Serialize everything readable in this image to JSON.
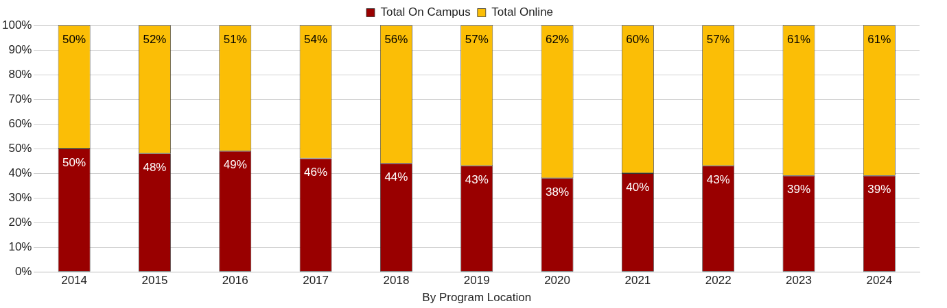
{
  "chart_data": {
    "type": "bar",
    "stacked": true,
    "xlabel": "By Program Location",
    "categories": [
      "2014",
      "2015",
      "2016",
      "2017",
      "2018",
      "2019",
      "2020",
      "2021",
      "2022",
      "2023",
      "2024"
    ],
    "series": [
      {
        "name": "Total On Campus",
        "color": "#990000",
        "values": [
          50,
          48,
          49,
          46,
          44,
          43,
          38,
          40,
          43,
          39,
          39
        ],
        "value_labels": [
          "50%",
          "48%",
          "49%",
          "46%",
          "44%",
          "43%",
          "38%",
          "40%",
          "43%",
          "39%",
          "39%"
        ]
      },
      {
        "name": "Total Online",
        "color": "#fbbe06",
        "values": [
          50,
          52,
          51,
          54,
          56,
          57,
          62,
          60,
          57,
          61,
          61
        ],
        "value_labels": [
          "50%",
          "52%",
          "51%",
          "54%",
          "56%",
          "57%",
          "62%",
          "60%",
          "57%",
          "61%",
          "61%"
        ]
      }
    ],
    "ylim": [
      0,
      100
    ],
    "yticks": [
      {
        "value": 0,
        "label": "0%"
      },
      {
        "value": 10,
        "label": "10%"
      },
      {
        "value": 20,
        "label": "20%"
      },
      {
        "value": 30,
        "label": "30%"
      },
      {
        "value": 40,
        "label": "40%"
      },
      {
        "value": 50,
        "label": "50%"
      },
      {
        "value": 60,
        "label": "60%"
      },
      {
        "value": 70,
        "label": "70%"
      },
      {
        "value": 80,
        "label": "80%"
      },
      {
        "value": 90,
        "label": "90%"
      },
      {
        "value": 100,
        "label": "100%"
      }
    ],
    "grid": "y",
    "legend": "top"
  }
}
